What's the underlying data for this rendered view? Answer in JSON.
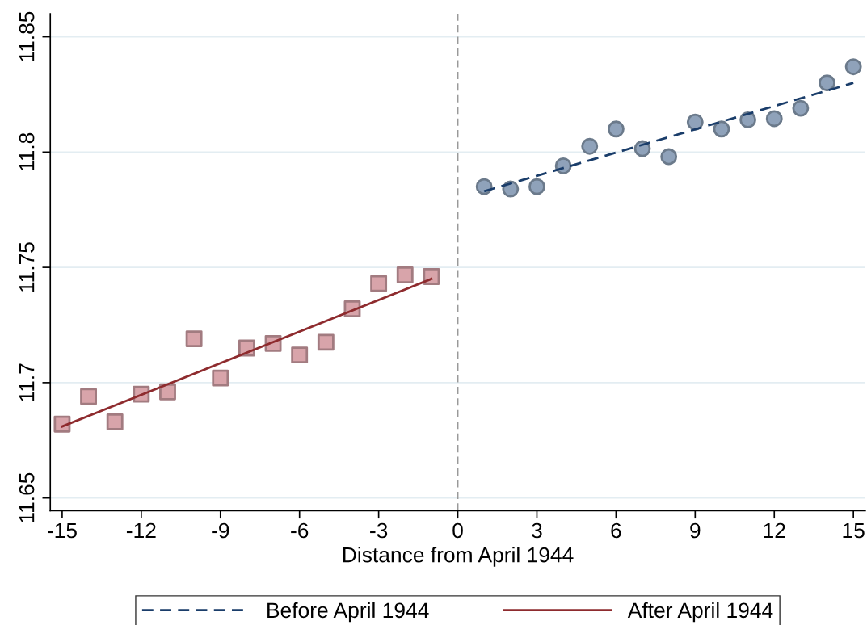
{
  "chart_data": {
    "type": "scatter",
    "xlabel": "Distance from April 1944",
    "xlim": [
      -15.45,
      15.45
    ],
    "xticks": [
      -15,
      -12,
      -9,
      -6,
      -3,
      0,
      3,
      6,
      9,
      12,
      15
    ],
    "ylim": [
      11.6445,
      11.86
    ],
    "yticks": [
      11.65,
      {
        "value": 11.7,
        "label": "11.7"
      },
      11.75,
      {
        "value": 11.8,
        "label": "11.8"
      },
      11.85
    ],
    "grid": "y",
    "legend": "bottom",
    "series": [
      {
        "marker": "square",
        "color": "#d8a4aa",
        "x": [
          -15,
          -14,
          -13,
          -12,
          -11,
          -10,
          -9,
          -8,
          -7,
          -6,
          -5,
          -4,
          -3,
          -2,
          -1
        ],
        "values": [
          11.682,
          11.694,
          11.683,
          11.695,
          11.696,
          11.719,
          11.702,
          11.715,
          11.717,
          11.712,
          11.7175,
          11.732,
          11.743,
          11.7467,
          11.746
        ]
      },
      {
        "marker": "circle",
        "color": "#8fa2ba",
        "x": [
          1,
          2,
          3,
          4,
          5,
          6,
          7,
          8,
          9,
          10,
          11,
          12,
          13,
          14,
          15
        ],
        "values": [
          11.785,
          11.784,
          11.785,
          11.794,
          11.8025,
          11.81,
          11.8015,
          11.798,
          11.813,
          11.81,
          11.814,
          11.8145,
          11.819,
          11.83,
          11.837
        ]
      },
      {
        "type": "line",
        "name": "Before April 1944",
        "line_style": "dashed",
        "color": "#1a3d6a",
        "x": [
          1,
          15
        ],
        "values": [
          11.783,
          11.83
        ]
      },
      {
        "type": "line",
        "name": "After April 1944",
        "line_style": "solid",
        "color": "#8e2b2e",
        "x": [
          -15,
          -1
        ],
        "values": [
          11.681,
          11.745
        ]
      }
    ],
    "ref_lines": [
      {
        "axis": "x",
        "value": 0,
        "color": "#999999",
        "line_style": "dashed"
      }
    ]
  }
}
